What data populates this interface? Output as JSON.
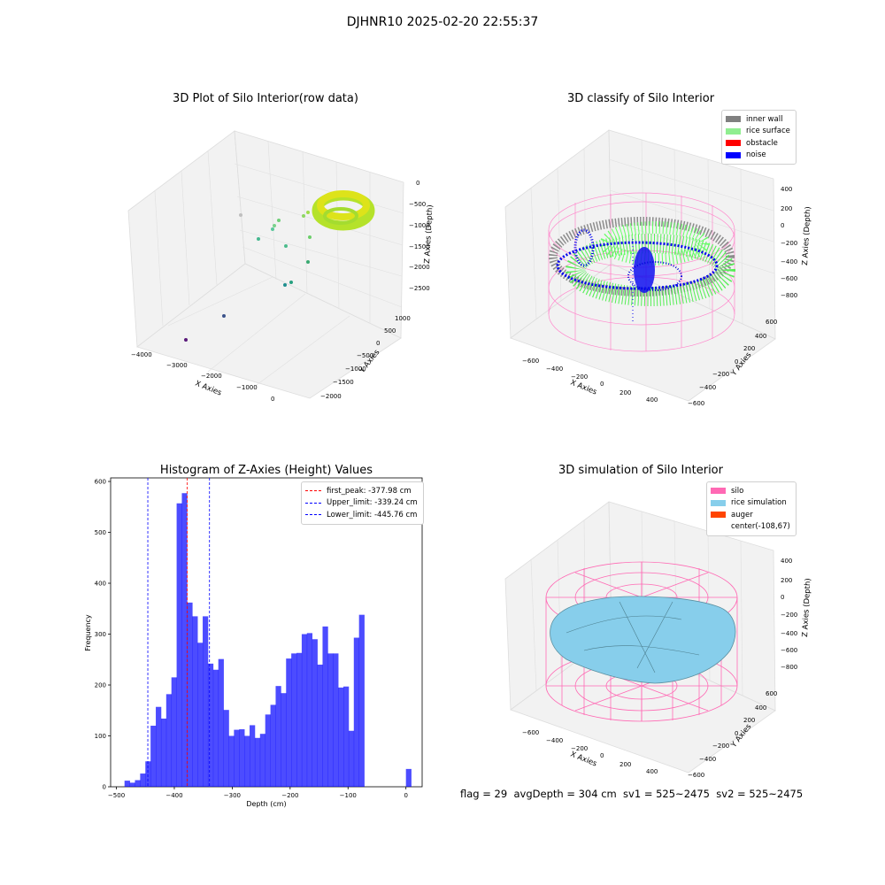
{
  "figure": {
    "suptitle": "DJHNR10 2025-02-20 22:55:37",
    "footer": "flag = 29  avgDepth = 304 cm  sv1 = 525~2475  sv2 = 525~2475"
  },
  "panels": {
    "raw": {
      "title": "3D Plot of Silo Interior(row data)",
      "xlabel": "X Axies",
      "ylabel": "Y Axies",
      "zlabel": "Z Axies (Depth)",
      "xticks": [
        "−4000",
        "−3000",
        "−2000",
        "−1000",
        "0"
      ],
      "yticks": [
        "1000",
        "500",
        "0",
        "−500",
        "−1000",
        "−1500",
        "−2000"
      ],
      "zticks": [
        "0",
        "−500",
        "−1000",
        "−1500",
        "−2000",
        "−2500"
      ]
    },
    "classify": {
      "title": "3D classify of Silo Interior",
      "xlabel": "X Axies",
      "ylabel": "Y Axies",
      "zlabel": "Z Axies (Depth)",
      "xticks": [
        "−600",
        "−400",
        "−200",
        "0",
        "200",
        "400"
      ],
      "yticks": [
        "600",
        "400",
        "200",
        "0",
        "−200",
        "−400",
        "−600"
      ],
      "zticks": [
        "400",
        "200",
        "0",
        "−200",
        "−400",
        "−600",
        "−800"
      ],
      "legend": [
        {
          "label": "inner wall",
          "color": "#808080"
        },
        {
          "label": "rice surface",
          "color": "#90ee90"
        },
        {
          "label": "obstacle",
          "color": "#ff0000"
        },
        {
          "label": "noise",
          "color": "#0000ff"
        }
      ]
    },
    "simulation": {
      "title": "3D simulation of Silo Interior",
      "xlabel": "X Axies",
      "ylabel": "Y Axies",
      "zlabel": "Z Axies (Depth)",
      "xticks": [
        "−600",
        "−400",
        "−200",
        "0",
        "200",
        "400"
      ],
      "yticks": [
        "600",
        "400",
        "200",
        "0",
        "−200",
        "−400",
        "−600"
      ],
      "zticks": [
        "400",
        "200",
        "0",
        "−200",
        "−400",
        "−600",
        "−800"
      ],
      "legend": [
        {
          "label": "silo",
          "color": "#ff69b4"
        },
        {
          "label": "rice simulation",
          "color": "#87ceeb"
        },
        {
          "label": "auger",
          "color": "#ff4500"
        },
        {
          "label": "center(-108,67)",
          "color": "none"
        }
      ]
    }
  },
  "chart_data": {
    "type": "bar",
    "title": "Histogram of Z-Axies (Height) Values",
    "xlabel": "Depth (cm)",
    "ylabel": "Frequency",
    "xlim": [
      -510,
      28
    ],
    "ylim": [
      0,
      607
    ],
    "xticks": [
      -500,
      -400,
      -300,
      -200,
      -100,
      0
    ],
    "yticks": [
      0,
      100,
      200,
      300,
      400,
      500,
      600
    ],
    "bar_width": 8.9,
    "bar_color": "#0000ff",
    "bins_left": [
      -486,
      -477,
      -468,
      -459,
      -450,
      -441,
      -432,
      -423,
      -414,
      -405,
      -396,
      -387,
      -378,
      -369,
      -360,
      -351,
      -342,
      -333,
      -324,
      -315,
      -306,
      -297,
      -288,
      -279,
      -270,
      -261,
      -252,
      -243,
      -234,
      -225,
      -216,
      -207,
      -198,
      -189,
      -180,
      -171,
      -162,
      -153,
      -144,
      -135,
      -126,
      -117,
      -108,
      -99,
      -90,
      -81,
      -72,
      -63,
      -54,
      -45,
      -36,
      -27,
      -18,
      -9,
      0
    ],
    "values": [
      12,
      8,
      13,
      26,
      50,
      120,
      157,
      134,
      182,
      215,
      557,
      577,
      362,
      335,
      283,
      335,
      242,
      230,
      251,
      151,
      100,
      112,
      113,
      100,
      121,
      96,
      104,
      142,
      161,
      198,
      184,
      252,
      262,
      263,
      300,
      302,
      290,
      240,
      315,
      262,
      262,
      195,
      197,
      110,
      293,
      338,
      0,
      0,
      0,
      0,
      0,
      0,
      0,
      0,
      35
    ],
    "vlines": [
      {
        "label": "first_peak: -377.98 cm",
        "x": -377.98,
        "color": "#ff0000"
      },
      {
        "label": "Upper_limit: -339.24 cm",
        "x": -339.24,
        "color": "#0000ff"
      },
      {
        "label": "Lower_limit: -445.76 cm",
        "x": -445.76,
        "color": "#0000ff"
      }
    ]
  }
}
